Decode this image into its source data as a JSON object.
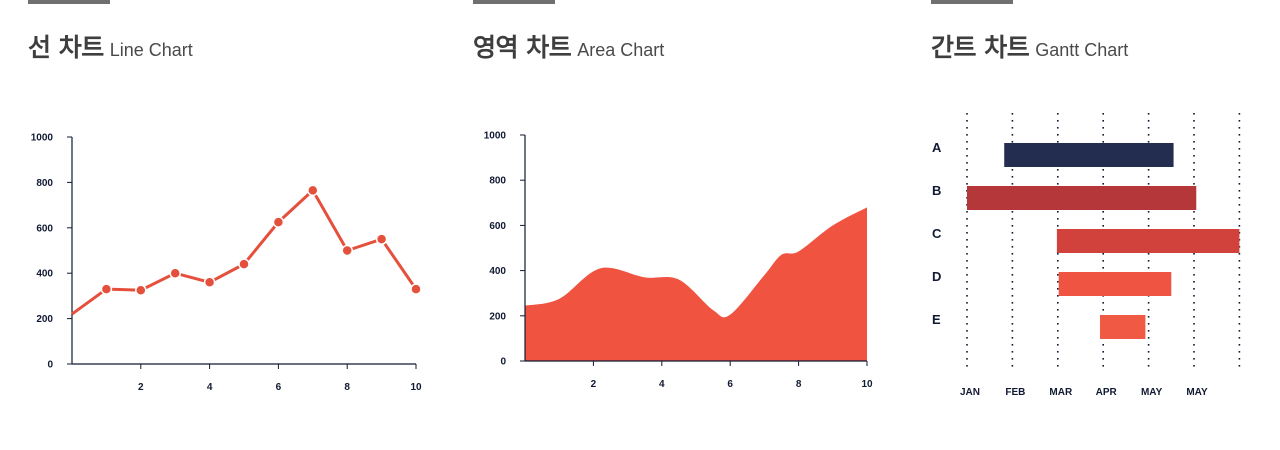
{
  "chart_data": [
    {
      "type": "line",
      "title_ko": "선 차트",
      "title_en": "Line Chart",
      "x": [
        0,
        1,
        2,
        3,
        4,
        5,
        6,
        7,
        8,
        9,
        10
      ],
      "y": [
        220,
        330,
        325,
        400,
        360,
        440,
        625,
        765,
        500,
        550,
        330
      ],
      "xticks": [
        "2",
        "4",
        "6",
        "8",
        "10"
      ],
      "yticks": [
        "0",
        "200",
        "400",
        "600",
        "800",
        "1000"
      ],
      "xlim": [
        0,
        10
      ],
      "ylim": [
        0,
        1000
      ],
      "color": "#e5503d"
    },
    {
      "type": "area",
      "title_ko": "영역 차트",
      "title_en": "Area Chart",
      "x": [
        0,
        1,
        2.2,
        3.5,
        4.5,
        5.5,
        6,
        7,
        7.5,
        8,
        9,
        10
      ],
      "y": [
        245,
        275,
        410,
        370,
        360,
        225,
        205,
        380,
        470,
        485,
        600,
        680
      ],
      "xticks": [
        "2",
        "4",
        "6",
        "8",
        "10"
      ],
      "yticks": [
        "0",
        "200",
        "400",
        "600",
        "800",
        "1000"
      ],
      "xlim": [
        0,
        10
      ],
      "ylim": [
        0,
        1000
      ],
      "color": "#f05440"
    },
    {
      "type": "gantt",
      "title_ko": "간트 차트",
      "title_en": "Gantt Chart",
      "months": [
        "JAN",
        "FEB",
        "MAR",
        "APR",
        "MAY",
        "MAY"
      ],
      "tasks": [
        {
          "label": "A",
          "start": 0.82,
          "end": 4.55,
          "color": "#232d4f"
        },
        {
          "label": "B",
          "start": 0.0,
          "end": 5.05,
          "color": "#b5373a"
        },
        {
          "label": "C",
          "start": 1.98,
          "end": 6.0,
          "color": "#d2423c"
        },
        {
          "label": "D",
          "start": 2.02,
          "end": 4.5,
          "color": "#ef5442"
        },
        {
          "label": "E",
          "start": 2.93,
          "end": 3.93,
          "color": "#f05a45"
        }
      ]
    }
  ]
}
